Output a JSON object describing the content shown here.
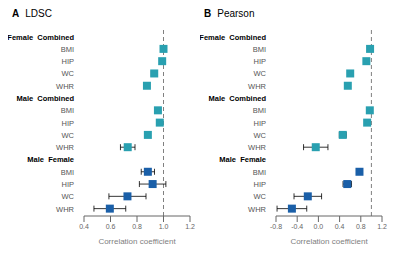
{
  "chart_data": [
    {
      "type": "errorbar",
      "panel_label": "A",
      "title": "LDSC",
      "xlabel": "Correlation coefficient",
      "xlim": [
        0.4,
        1.2
      ],
      "xticks": [
        0.4,
        0.6,
        0.8,
        {
          "value": 1.0,
          "label": "1.0"
        },
        1.2
      ],
      "vline": 1.0,
      "marker": "square",
      "grid": false,
      "groups": [
        {
          "label": "Female  Combined",
          "color": "#29a0b0",
          "categories": [
            "BMI",
            "HIP",
            "WC",
            "WHR"
          ],
          "values": [
            1.0,
            0.99,
            0.93,
            0.875
          ],
          "ci_lo": [
            0.988,
            0.978,
            0.908,
            0.855
          ],
          "ci_hi": [
            1.012,
            1.002,
            0.952,
            0.895
          ]
        },
        {
          "label": "Male  Combined",
          "color": "#29a0b0",
          "categories": [
            "BMI",
            "HIP",
            "WC",
            "WHR"
          ],
          "values": [
            0.958,
            0.972,
            0.882,
            0.73
          ],
          "ci_lo": [
            0.948,
            0.96,
            0.868,
            0.675
          ],
          "ci_hi": [
            0.968,
            0.984,
            0.896,
            0.785
          ]
        },
        {
          "label": "Male  Female",
          "color": "#1a5fa8",
          "categories": [
            "BMI",
            "HIP",
            "WC",
            "WHR"
          ],
          "values": [
            0.882,
            0.918,
            0.728,
            0.595
          ],
          "ci_lo": [
            0.832,
            0.818,
            0.588,
            0.475
          ],
          "ci_hi": [
            0.932,
            1.018,
            0.868,
            0.715
          ]
        }
      ]
    },
    {
      "type": "errorbar",
      "panel_label": "B",
      "title": "Pearson",
      "xlabel": "Correlation coefficient",
      "xlim": [
        -0.8,
        1.2
      ],
      "xticks": [
        -0.8,
        -0.4,
        {
          "value": 0.0,
          "label": "0.0"
        },
        0.4,
        0.8,
        1.2
      ],
      "vline": 1.0,
      "marker": "square",
      "grid": false,
      "groups": [
        {
          "label": "Female  Combined",
          "color": "#29a0b0",
          "categories": [
            "BMI",
            "HIP",
            "WC",
            "WHR"
          ],
          "values": [
            0.975,
            0.905,
            0.6,
            0.555
          ],
          "ci_lo": [
            0.965,
            0.89,
            0.555,
            0.515
          ],
          "ci_hi": [
            0.985,
            0.92,
            0.645,
            0.595
          ]
        },
        {
          "label": "Male  Combined",
          "color": "#29a0b0",
          "categories": [
            "BMI",
            "HIP",
            "WC",
            "WHR"
          ],
          "values": [
            0.97,
            0.92,
            0.46,
            -0.05
          ],
          "ci_lo": [
            0.96,
            0.908,
            0.395,
            -0.28
          ],
          "ci_hi": [
            0.98,
            0.932,
            0.525,
            0.18
          ]
        },
        {
          "label": "Male  Female",
          "color": "#1a5fa8",
          "categories": [
            "BMI",
            "HIP",
            "WC",
            "WHR"
          ],
          "values": [
            0.775,
            0.545,
            -0.2,
            -0.5
          ],
          "ci_lo": [
            0.725,
            0.465,
            -0.46,
            -0.78
          ],
          "ci_hi": [
            0.825,
            0.625,
            0.06,
            -0.22
          ]
        }
      ]
    }
  ]
}
